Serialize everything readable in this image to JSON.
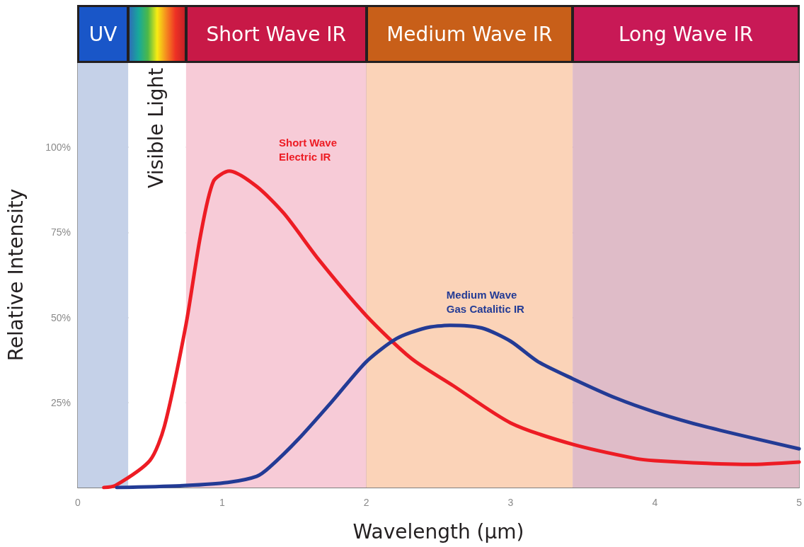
{
  "chart_data": {
    "type": "line",
    "xlabel": "Wavelength (μm)",
    "ylabel": "Relative Intensity",
    "xlim": [
      0,
      5
    ],
    "xticks": [
      0,
      1,
      2,
      3,
      4,
      5
    ],
    "ylim": [
      0,
      125
    ],
    "yticks": [
      {
        "value": 25,
        "label": "25%"
      },
      {
        "value": 50,
        "label": "50%"
      },
      {
        "value": 75,
        "label": "75%"
      },
      {
        "value": 100,
        "label": "100%"
      }
    ],
    "grid": true,
    "legend": false,
    "marker": "none",
    "line_style": "solid",
    "bands": [
      {
        "axis": "x",
        "from": 0,
        "to": 0.35,
        "label": "UV",
        "color": "#c5d1e8"
      },
      {
        "axis": "x",
        "from": 0.35,
        "to": 0.75,
        "label": "Visible Light",
        "color": "#ffffff"
      },
      {
        "axis": "x",
        "from": 0.75,
        "to": 2.0,
        "label": "Short Wave IR",
        "color": "#f7cbd7"
      },
      {
        "axis": "x",
        "from": 2.0,
        "to": 3.43,
        "label": "Medium Wave IR",
        "color": "#fbd3b8"
      },
      {
        "axis": "x",
        "from": 3.43,
        "to": 5,
        "label": "Long Wave IR",
        "color": "#dfbcc8"
      }
    ],
    "series": [
      {
        "name": "Short Wave\nElectric IR",
        "color": "#ed1c24",
        "x": [
          0.18,
          0.26,
          0.5,
          0.6,
          0.75,
          0.85,
          0.94,
          1.05,
          1.24,
          1.43,
          1.67,
          2.0,
          2.31,
          2.6,
          3.0,
          3.43,
          3.87,
          4.0,
          4.36,
          4.65,
          5.0
        ],
        "values": [
          0,
          0.6,
          8,
          18,
          48,
          74,
          90,
          93,
          88.5,
          80.5,
          67,
          50.5,
          38,
          30,
          19,
          12.7,
          8.5,
          7.9,
          7.1,
          6.8,
          7.5
        ]
      },
      {
        "name": "Medium Wave\nGas Catalitic IR",
        "color": "#233b95",
        "x": [
          0.27,
          0.75,
          1.04,
          1.24,
          1.33,
          1.53,
          1.77,
          2.0,
          2.21,
          2.41,
          2.58,
          2.8,
          3.0,
          3.19,
          3.43,
          3.73,
          4.0,
          4.36,
          5.0
        ],
        "values": [
          0,
          0.6,
          1.5,
          3.3,
          6,
          14.3,
          25.7,
          37,
          43.8,
          46.9,
          47.7,
          46.9,
          43,
          37,
          32,
          26.3,
          22.2,
          17.8,
          11.4
        ]
      }
    ]
  }
}
